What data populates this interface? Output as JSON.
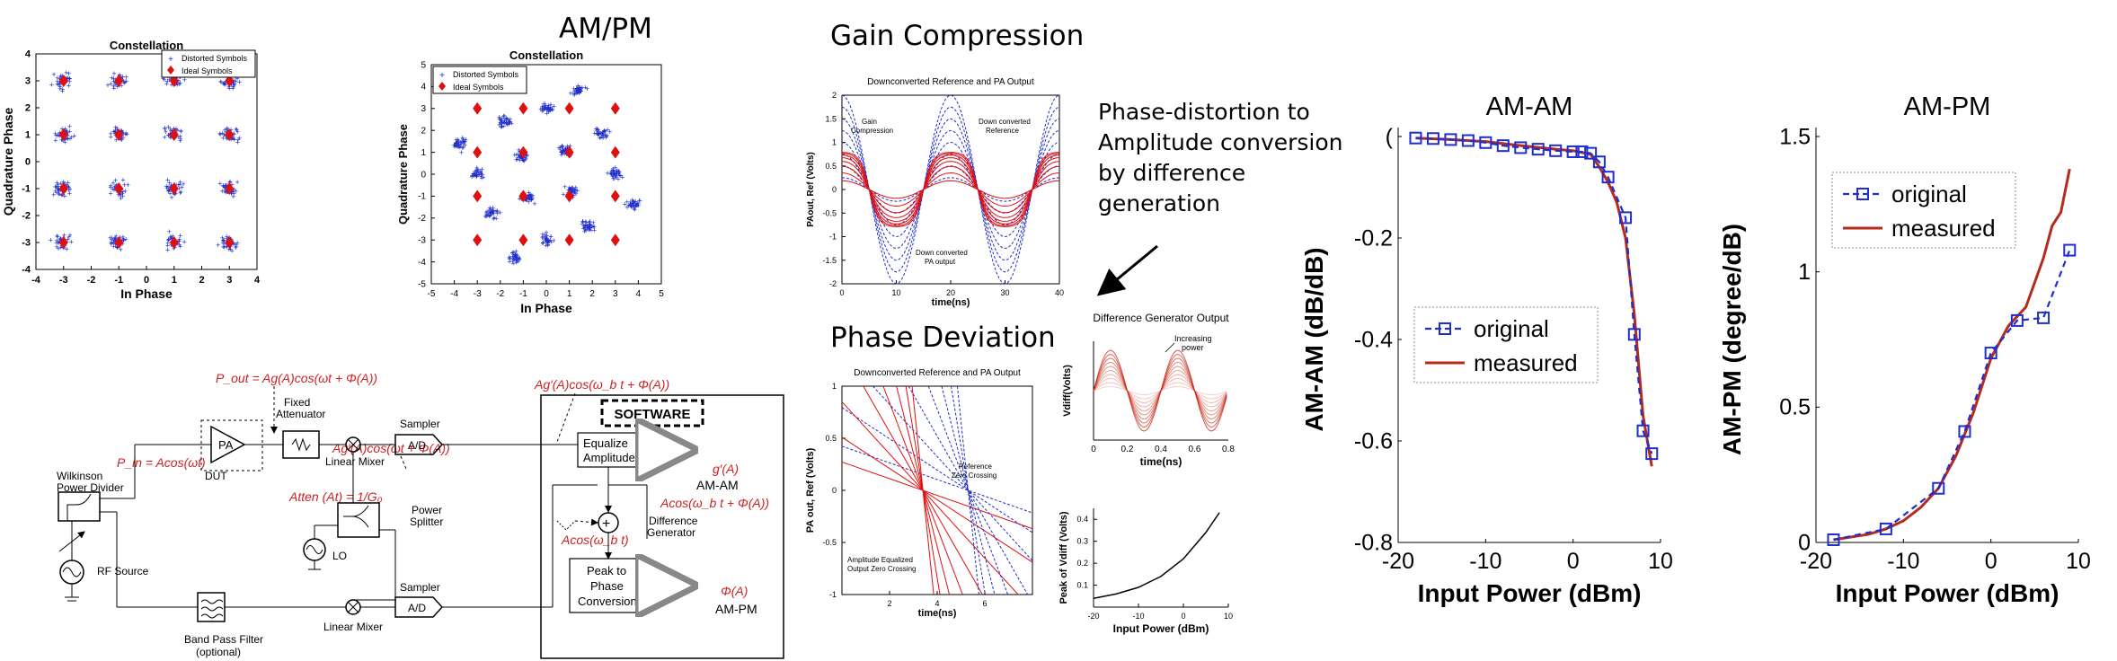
{
  "titles": {
    "ampm": "AM/PM",
    "gain": "Gain Compression",
    "phase_dev": "Phase Deviation",
    "caption": [
      "Phase-distortion to",
      "Amplitude conversion",
      "by difference",
      "generation"
    ]
  },
  "colors": {
    "blue": "#1f2ecc",
    "red": "#e01010",
    "darkred": "#b52a1a",
    "formula": "#cc2222"
  },
  "chart_data": [
    {
      "id": "constellation-1",
      "type": "scatter",
      "title": "Constellation",
      "xlabel": "In Phase",
      "ylabel": "Quadrature Phase",
      "xlim": [
        -4,
        4
      ],
      "ylim": [
        -4,
        4
      ],
      "xticks": [
        "-4",
        "-3",
        "-2",
        "-1",
        "0",
        "1",
        "2",
        "3",
        "4"
      ],
      "yticks": [
        "-4",
        "-3",
        "-2",
        "-1",
        "0",
        "1",
        "2",
        "3",
        "4"
      ],
      "legend": [
        "Distorted Symbols",
        "Ideal Symbols"
      ],
      "legend_position": "top-right",
      "ideal_x": [
        -3,
        -1,
        1,
        3
      ],
      "ideal_y": [
        -3,
        -1,
        1,
        3
      ]
    },
    {
      "id": "constellation-2",
      "type": "scatter",
      "title": "Constellation",
      "xlabel": "In Phase",
      "ylabel": "Quadrature Phase",
      "xlim": [
        -5,
        5
      ],
      "ylim": [
        -5,
        5
      ],
      "xticks": [
        "-5",
        "-4",
        "-3",
        "-2",
        "-1",
        "0",
        "1",
        "2",
        "3",
        "4",
        "5"
      ],
      "yticks": [
        "-5",
        "-4",
        "-3",
        "-2",
        "-1",
        "0",
        "1",
        "2",
        "3",
        "4",
        "5"
      ],
      "legend": [
        "Distorted Symbols",
        "Ideal Symbols"
      ],
      "legend_position": "top-left",
      "ideal_x": [
        -3,
        -1,
        1,
        3
      ],
      "ideal_y": [
        -3,
        -1,
        1,
        3
      ],
      "cluster_rotation_deg": 25
    },
    {
      "id": "downconverted",
      "type": "line",
      "title": "Downconverted Reference and PA Output",
      "xlabel": "time(ns)",
      "ylabel": "PAout, Ref (Volts)",
      "xlim": [
        0,
        40
      ],
      "ylim": [
        -2,
        2
      ],
      "xticks": [
        "0",
        "10",
        "20",
        "30",
        "40"
      ],
      "yticks": [
        "-2",
        "-1.5",
        "-1",
        "-0.5",
        "0",
        "0.5",
        "1",
        "1.5",
        "2"
      ],
      "annotations": [
        "Gain Compression",
        "Down converted Reference",
        "Down converted PA output"
      ]
    },
    {
      "id": "phase-deviation",
      "type": "line",
      "title": "Downconverted Reference and PA Output",
      "xlabel": "time(ns)",
      "ylabel": "PA out, Ref (Volts)",
      "xlim": [
        0,
        8
      ],
      "ylim": [
        -1,
        1
      ],
      "xticks": [
        "2",
        "4",
        "6"
      ],
      "yticks": [
        "-1",
        "-0.5",
        "0",
        "0.5",
        "1"
      ],
      "annotations": [
        "Reference Zero Crossing",
        "Amplitude Equalized Output Zero Crossing"
      ]
    },
    {
      "id": "diff-gen",
      "type": "line",
      "title": "Difference Generator Output",
      "xlabel": "time(ns)",
      "ylabel": "Vdiff(Volts)",
      "xlim": [
        0,
        0.8
      ],
      "xticks": [
        "0",
        "0.2",
        "0.4",
        "0.6",
        "0.8"
      ],
      "annotations": [
        "Increasing power"
      ]
    },
    {
      "id": "peak-vdiff",
      "type": "line",
      "title": "",
      "xlabel": "Input Power (dBm)",
      "ylabel": "Peak of Vdiff (Volts)",
      "xlim": [
        -20,
        10
      ],
      "ylim": [
        0,
        0.45
      ],
      "xticks": [
        "-20",
        "-10",
        "0",
        "10"
      ],
      "yticks": [
        "0.1",
        "0.2",
        "0.3",
        "0.4"
      ],
      "series": [
        {
          "x": [
            -20,
            -15,
            -10,
            -5,
            0,
            5,
            8
          ],
          "y": [
            0.04,
            0.06,
            0.09,
            0.14,
            0.22,
            0.34,
            0.43
          ]
        }
      ]
    },
    {
      "id": "am-am",
      "type": "line",
      "title": "AM-AM",
      "xlabel": "Input Power (dBm)",
      "ylabel": "AM-AM (dB/dB)",
      "xlim": [
        -20,
        10
      ],
      "ylim": [
        -0.8,
        0
      ],
      "xticks": [
        "-20",
        "-10",
        "0",
        "10"
      ],
      "yticks": [
        "-0.8",
        "-0.6",
        "-0.4",
        "-0.2",
        "("
      ],
      "legend": [
        "original",
        "measured"
      ],
      "legend_position": "left",
      "series": [
        {
          "name": "original",
          "x": [
            -18,
            -16,
            -14,
            -12,
            -10,
            -8,
            -6,
            -4,
            -2,
            0,
            1,
            2,
            3,
            4,
            6,
            7,
            8,
            9
          ],
          "y": [
            -0.003,
            -0.004,
            -0.006,
            -0.008,
            -0.012,
            -0.018,
            -0.022,
            -0.025,
            -0.028,
            -0.03,
            -0.03,
            -0.033,
            -0.05,
            -0.08,
            -0.16,
            -0.39,
            -0.58,
            -0.625
          ]
        },
        {
          "name": "measured",
          "x": [
            -18,
            -14,
            -10,
            -6,
            -2,
            0,
            2,
            3,
            4,
            5,
            6,
            7,
            8,
            9
          ],
          "y": [
            -0.003,
            -0.006,
            -0.01,
            -0.018,
            -0.025,
            -0.028,
            -0.035,
            -0.06,
            -0.09,
            -0.13,
            -0.2,
            -0.35,
            -0.55,
            -0.65
          ]
        }
      ]
    },
    {
      "id": "am-pm",
      "type": "line",
      "title": "AM-PM",
      "xlabel": "Input Power (dBm)",
      "ylabel": "AM-PM (degree/dB)",
      "xlim": [
        -20,
        10
      ],
      "ylim": [
        0,
        1.5
      ],
      "xticks": [
        "-20",
        "-10",
        "0",
        "10"
      ],
      "yticks": [
        "0",
        "0.5",
        "1",
        "1.5"
      ],
      "legend": [
        "original",
        "measured"
      ],
      "legend_position": "top-left",
      "series": [
        {
          "name": "original",
          "x": [
            -18,
            -12,
            -6,
            -3,
            0,
            3,
            6,
            9
          ],
          "y": [
            0.01,
            0.05,
            0.2,
            0.41,
            0.7,
            0.82,
            0.83,
            1.08
          ]
        },
        {
          "name": "measured",
          "x": [
            -18,
            -14,
            -12,
            -10,
            -8,
            -6,
            -4,
            -2,
            0,
            2,
            4,
            6,
            7,
            8,
            9
          ],
          "y": [
            0.01,
            0.03,
            0.05,
            0.08,
            0.13,
            0.2,
            0.32,
            0.48,
            0.68,
            0.8,
            0.87,
            1.05,
            1.17,
            1.22,
            1.38
          ]
        }
      ]
    }
  ],
  "block_diagram": {
    "formulas": {
      "pout": "P_out = Ag(A)cos(ωt + Φ(A))",
      "pin": "P_in = Acos(ωt)",
      "agprime": "Ag′(A)cos(ωt + Φ(A))",
      "agprime_b": "Ag′(A)cos(ω_b t + Φ(A))",
      "atten": "Atten (At) = 1/G₀",
      "gprime": "g′(A)",
      "acos_phi": "Acos(ω_b t + Φ(A))",
      "acos_b": "Acos(ω_b t)",
      "phi": "Φ(A)"
    },
    "labels": {
      "pa": "PA",
      "dut": "DUT",
      "fixed_attenuator": [
        "Fixed",
        "Attenuator"
      ],
      "linear_mixer": "Linear Mixer",
      "sampler": "Sampler",
      "ad": "A/D",
      "software": "SOFTWARE",
      "equalize": [
        "Equalize",
        "Amplitude"
      ],
      "amam": "AM-AM",
      "power_splitter": [
        "Power",
        "Splitter"
      ],
      "lo": "LO",
      "wilkinson": [
        "Wilkinson",
        "Power Divider"
      ],
      "rf_source": "RF Source",
      "bpf": [
        "Band Pass Filter",
        "(optional)"
      ],
      "difference_generator": [
        "Difference",
        "Generator"
      ],
      "peak_to_phase": [
        "Peak to",
        "Phase",
        "Conversion"
      ],
      "ampm": "AM-PM"
    }
  }
}
